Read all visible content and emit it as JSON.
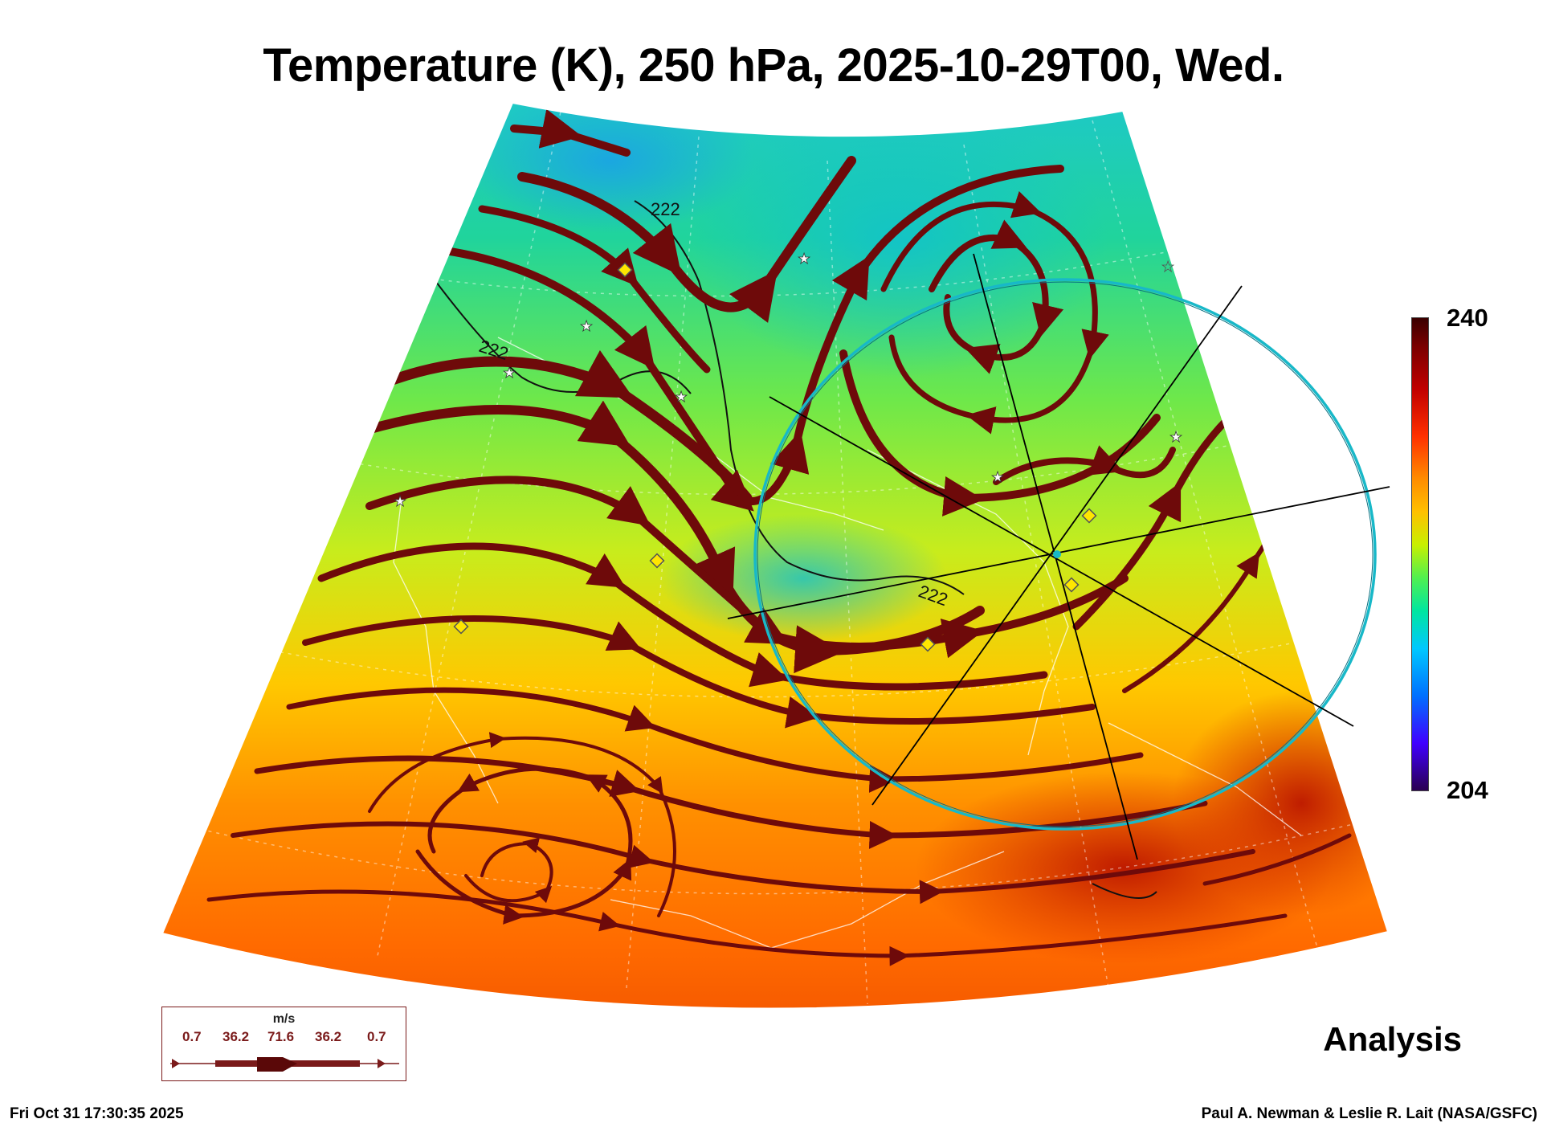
{
  "title": "Temperature (K), 250 hPa, 2025-10-29T00, Wed.",
  "colorbar": {
    "max": "240",
    "min": "204"
  },
  "contour_labels": [
    "222",
    "222",
    "222"
  ],
  "legend": {
    "unit": "m/s",
    "values": [
      "0.7",
      "36.2",
      "71.6",
      "36.2",
      "0.7"
    ]
  },
  "analysis_label": "Analysis",
  "timestamp": "Fri Oct 31 17:30:35 2025",
  "credit": "Paul A. Newman & Leslie R. Lait (NASA/GSFC)",
  "colors": {
    "streamline": "#6e0a0a",
    "range_ring": "#18b8c8",
    "marker_fill": "#ffe600"
  }
}
